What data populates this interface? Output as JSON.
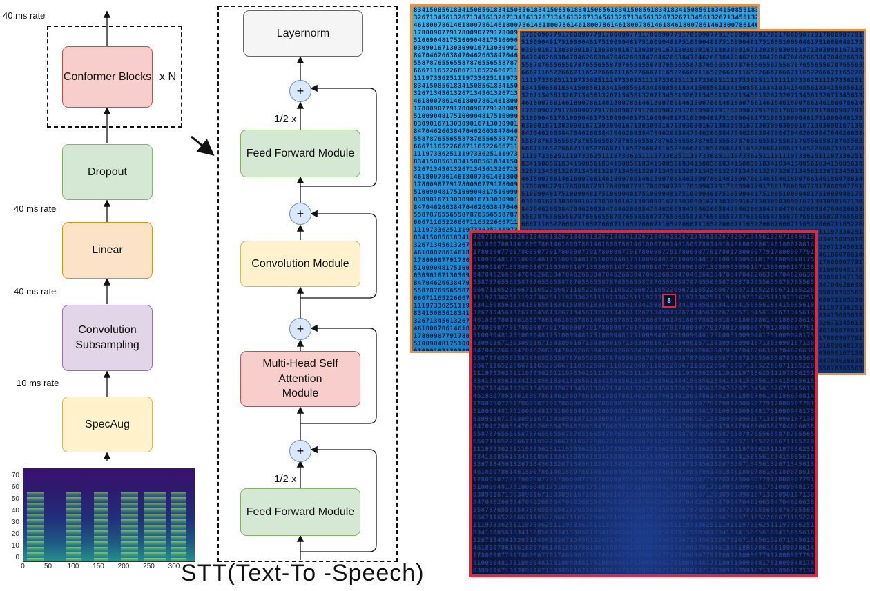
{
  "left_stack": {
    "rates": [
      "40 ms rate",
      "40 ms rate",
      "40 ms rate",
      "10 ms rate"
    ],
    "conformer_label": "Conformer Blocks",
    "repeat_label": "x N",
    "dropout_label": "Dropout",
    "linear_label": "Linear",
    "conv_subsampling_label": "Convolution\nSubsampling",
    "specaug_label": "SpecAug"
  },
  "conformer_block": {
    "layernorm_label": "Layernorm",
    "ff_top_label": "Feed Forward Module",
    "conv_module_label": "Convolution Module",
    "mhsa_label": "Multi-Head Self Attention\nModule",
    "ff_bottom_label": "Feed Forward Module",
    "half_top": "1/2 x",
    "half_bottom": "1/2 x",
    "plus_symbol": "+"
  },
  "spectrogram": {
    "y_ticks": [
      "70",
      "60",
      "50",
      "40",
      "30",
      "20",
      "10",
      "0"
    ],
    "x_ticks": [
      "0",
      "50",
      "100",
      "150",
      "200",
      "250",
      "300"
    ]
  },
  "digit_panels": {
    "pattern_rows": [
      "8341508561834150856183415085618341508561834150856183415085618341",
      "3267134561326713456132671345613267134561326713456132671345613267",
      "4618007861461800786146180078614618007861461800786146180078614618",
      "1780090779178009077917800907791780090779178009077917800907791780",
      "5100904817510090481751009048175100904817510090481751009048175100",
      "0309016713030901671303090167130309016713030901671303090167130309",
      "8470462663847046266384704626638470462663847046266384704626638470",
      "5587876556558787655655878765565587876556558787655655878765565587",
      "6667116522666711652266671165226667116522666711652266671165226667",
      "1119733625111973362511197336251119733625111973362511197336251119"
    ],
    "highlight_digit": "8"
  },
  "caption": "STT(Text-To -Speech)",
  "colors": {
    "orange_border": "#f0923a",
    "red_border": "#e8243c",
    "green_fill": "#d5e8d4",
    "red_fill": "#f8cecc",
    "orange_fill": "#fce3c8",
    "purple_fill": "#e1d5e7",
    "yellow_fill": "#fff2cc",
    "gray_fill": "#f5f5f5",
    "plus_fill": "#dae8fc"
  }
}
